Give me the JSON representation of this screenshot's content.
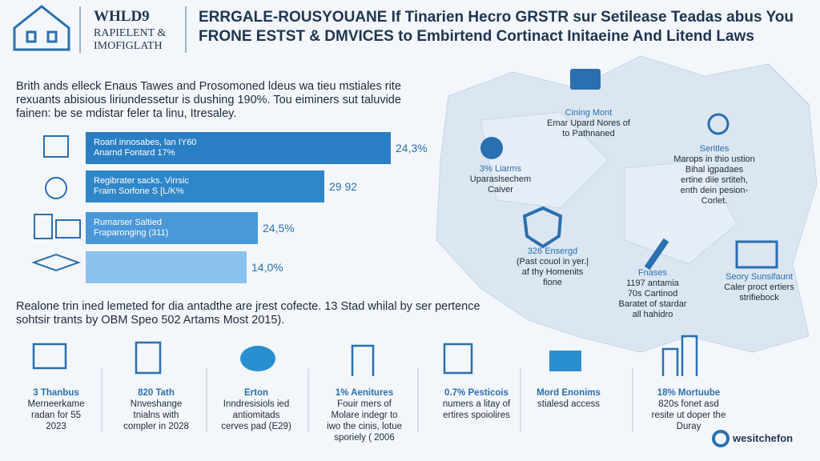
{
  "header": {
    "logo_title": "WHLD9",
    "logo_lines": [
      "RAPIELENT &",
      "IMOFIGLATH"
    ],
    "headline": [
      "ERRGALE-ROUSYOUANE  If Tinarien Hecro GRSTR sur Setilease Teadas abus You",
      "FRONE ESTST & DMVICES to Embirtend Cortinact Initaeine And Litend Laws"
    ]
  },
  "intro": [
    "Brith ands elleck Enaus Tawes and Prosomoned ldeus wa tieu mstiales rite",
    "rexuants abisious liriundessetur is dushing 190%. Tou eiminers sut taluvide",
    "fainen: be se mdistar feler ta linu, Itresaley."
  ],
  "bars": [
    {
      "text": [
        "Roanl innosabes, lan IY60",
        "Anarnd Fontard 17%"
      ],
      "value_label": "24,3%"
    },
    {
      "text": [
        "Regibrater sacks. Virrsic",
        "Fraim Sorfone S [L/K%"
      ],
      "value_label": "29 92"
    },
    {
      "text": [
        "Rumarser Saltied",
        "Fraparonging (311)"
      ],
      "value_label": "24,5%"
    },
    {
      "value_label": "14,0%"
    }
  ],
  "map_labels": [
    {
      "lines": [
        "Cining Mont",
        "Emar Upard Nores of",
        "to Pathnaned"
      ]
    },
    {
      "lines": [
        "Seritles",
        "Marops in thio ustion",
        "Bihal igpadaes",
        "ertine diie srtiteh,",
        "enth dein pesion-",
        "Corlet."
      ]
    },
    {
      "lines": [
        "3% Liarms",
        "Uparaslsechem",
        "Caiver"
      ]
    },
    {
      "lines": [
        "326 Ensergd",
        "(Past couol in yer.|",
        "af thy Homenits",
        "fione"
      ]
    },
    {
      "lines": [
        "Fnases",
        "1197 antamia",
        "70s Cartinod",
        "Baratet of stardar",
        "all hahidro"
      ]
    },
    {
      "lines": [
        "Seory Sunsifaunt",
        "Caler proct ertiers",
        "strifiebock"
      ]
    }
  ],
  "bottom_text": [
    "Realone trin ined lemeted for dia antadthe are jrest cofecte. 13 Stad whilal by ser pertence",
    "sohtsir trants by OBM Speo 502 Artams Most 2015)."
  ],
  "stats": [
    {
      "lines": [
        "3 Thanbus",
        "Merneerkame",
        "radan for 55",
        "2023"
      ]
    },
    {
      "lines": [
        "820 Tath",
        "Nnveshange",
        "tnialns with",
        "compler in 2028"
      ]
    },
    {
      "lines": [
        "Erton",
        "Inndresisiols ied",
        "antiomitads",
        "cerves pad (E29)"
      ]
    },
    {
      "lines": [
        "1% Aenitures",
        "Fouir mers of",
        "Molare indegr to",
        "iwo the cinis, lotue",
        "sporiely ( 2006"
      ]
    },
    {
      "lines": [
        "0.7% Pesticois",
        "numers a litay of",
        "ertires spoiolires"
      ]
    },
    {
      "lines": [
        "Mord Enonims",
        "stialesd access"
      ]
    },
    {
      "lines": [
        "18% Mortuube",
        "820s fonet asd",
        "resite ut doper the",
        "Duray"
      ]
    }
  ],
  "footer": {
    "brand": "wesitchefon"
  }
}
